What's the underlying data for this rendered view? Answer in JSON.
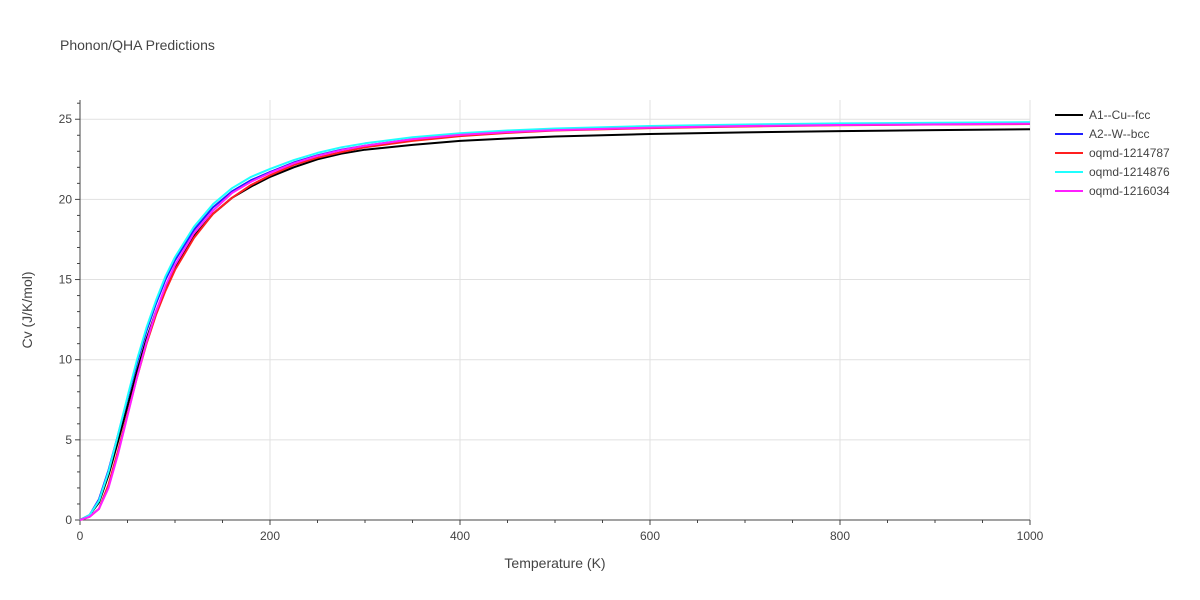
{
  "chart_data": {
    "type": "line",
    "title": "Phonon/QHA Predictions",
    "xlabel": "Temperature (K)",
    "ylabel": "Cv (J/K/mol)",
    "xlim": [
      0,
      1000
    ],
    "ylim": [
      0,
      26.2
    ],
    "xticks": [
      0,
      200,
      400,
      600,
      800,
      1000
    ],
    "yticks": [
      0,
      5,
      10,
      15,
      20,
      25
    ],
    "grid": true,
    "legend_position": "top-right",
    "series": [
      {
        "name": "A1--Cu--fcc",
        "color": "#000000",
        "x": [
          0,
          10,
          20,
          30,
          40,
          50,
          60,
          70,
          80,
          90,
          100,
          120,
          140,
          160,
          180,
          200,
          225,
          250,
          275,
          300,
          350,
          400,
          450,
          500,
          600,
          700,
          800,
          900,
          1000
        ],
        "y": [
          0,
          0.3,
          1.1,
          2.8,
          4.9,
          7.1,
          9.3,
          11.3,
          13.0,
          14.5,
          15.8,
          17.7,
          19.1,
          20.1,
          20.8,
          21.4,
          22.0,
          22.5,
          22.85,
          23.1,
          23.4,
          23.65,
          23.8,
          23.92,
          24.08,
          24.18,
          24.26,
          24.32,
          24.38
        ]
      },
      {
        "name": "A2--W--bcc",
        "color": "#1f1fff",
        "x": [
          0,
          10,
          20,
          30,
          40,
          50,
          60,
          70,
          80,
          90,
          100,
          120,
          140,
          160,
          180,
          200,
          225,
          250,
          275,
          300,
          350,
          400,
          450,
          500,
          600,
          700,
          800,
          900,
          1000
        ],
        "y": [
          0,
          0.3,
          1.3,
          3.1,
          5.3,
          7.6,
          9.8,
          11.8,
          13.5,
          15.0,
          16.2,
          18.1,
          19.5,
          20.5,
          21.2,
          21.7,
          22.3,
          22.75,
          23.1,
          23.35,
          23.75,
          24.0,
          24.2,
          24.35,
          24.5,
          24.6,
          24.68,
          24.73,
          24.78
        ]
      },
      {
        "name": "oqmd-1214787",
        "color": "#ff1f1f",
        "x": [
          0,
          10,
          20,
          30,
          40,
          50,
          60,
          70,
          80,
          90,
          100,
          120,
          140,
          160,
          180,
          200,
          225,
          250,
          275,
          300,
          350,
          400,
          450,
          500,
          600,
          700,
          800,
          900,
          1000
        ],
        "y": [
          0,
          0.2,
          0.7,
          2.2,
          4.3,
          6.6,
          8.9,
          11.0,
          12.8,
          14.3,
          15.6,
          17.6,
          19.1,
          20.1,
          20.9,
          21.5,
          22.15,
          22.6,
          22.95,
          23.25,
          23.65,
          23.95,
          24.15,
          24.3,
          24.45,
          24.55,
          24.62,
          24.67,
          24.7
        ]
      },
      {
        "name": "oqmd-1214876",
        "color": "#1fffff",
        "x": [
          0,
          10,
          20,
          30,
          40,
          50,
          60,
          70,
          80,
          90,
          100,
          120,
          140,
          160,
          180,
          200,
          225,
          250,
          275,
          300,
          350,
          400,
          450,
          500,
          600,
          700,
          800,
          900,
          1000
        ],
        "y": [
          0,
          0.3,
          1.2,
          3.0,
          5.3,
          7.7,
          10.0,
          12.0,
          13.7,
          15.2,
          16.4,
          18.3,
          19.7,
          20.7,
          21.4,
          21.9,
          22.45,
          22.9,
          23.25,
          23.5,
          23.88,
          24.12,
          24.3,
          24.42,
          24.58,
          24.67,
          24.74,
          24.78,
          24.82
        ]
      },
      {
        "name": "oqmd-1216034",
        "color": "#ff1fff",
        "x": [
          0,
          10,
          20,
          30,
          40,
          50,
          60,
          70,
          80,
          90,
          100,
          120,
          140,
          160,
          180,
          200,
          225,
          250,
          275,
          300,
          350,
          400,
          450,
          500,
          600,
          700,
          800,
          900,
          1000
        ],
        "y": [
          0,
          0.2,
          0.7,
          2.0,
          4.1,
          6.5,
          8.9,
          11.1,
          13.0,
          14.6,
          15.9,
          17.9,
          19.3,
          20.4,
          21.1,
          21.65,
          22.25,
          22.72,
          23.07,
          23.35,
          23.75,
          24.02,
          24.2,
          24.32,
          24.48,
          24.58,
          24.64,
          24.68,
          24.72
        ]
      }
    ]
  }
}
